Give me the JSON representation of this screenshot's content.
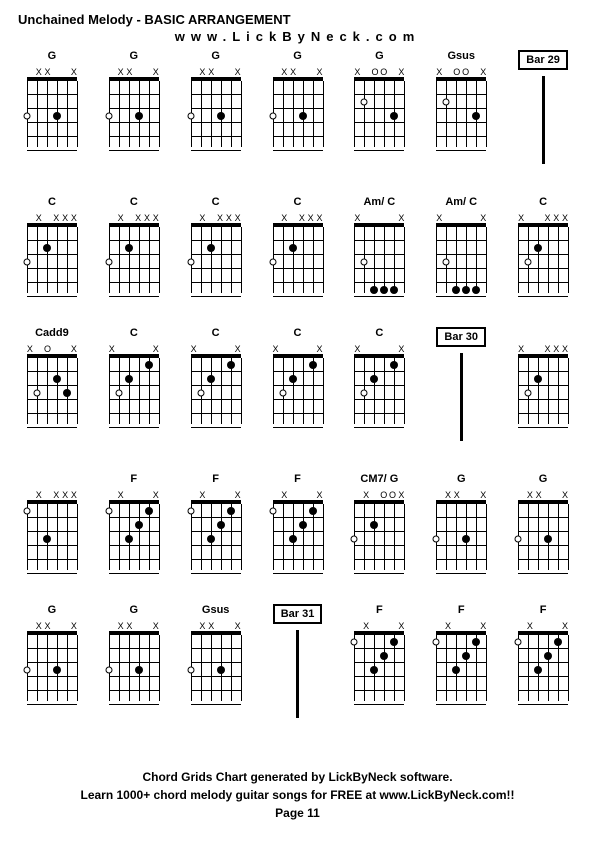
{
  "title": "Unchained Melody - BASIC ARRANGEMENT",
  "subtitle": "www.LickByNeck.com",
  "footer_line1": "Chord Grids Chart generated by LickByNeck software.",
  "footer_line2": "Learn 1000+ chord melody guitar songs for FREE at www.LickByNeck.com!!",
  "footer_page": "Page 11",
  "colors": {
    "bg": "#ffffff",
    "fg": "#000000"
  },
  "layout": {
    "rows": 5,
    "cols": 7,
    "fret_count": 5,
    "string_count": 6
  },
  "rows": [
    [
      {
        "type": "chord",
        "label": "G",
        "nut": [
          "",
          "X",
          "X",
          "",
          "",
          "X"
        ],
        "dots": [
          [
            0,
            3,
            "h"
          ],
          [
            3,
            3,
            "s"
          ]
        ]
      },
      {
        "type": "chord",
        "label": "G",
        "nut": [
          "",
          "X",
          "X",
          "",
          "",
          "X"
        ],
        "dots": [
          [
            0,
            3,
            "h"
          ],
          [
            3,
            3,
            "s"
          ]
        ]
      },
      {
        "type": "chord",
        "label": "G",
        "nut": [
          "",
          "X",
          "X",
          "",
          "",
          "X"
        ],
        "dots": [
          [
            0,
            3,
            "h"
          ],
          [
            3,
            3,
            "s"
          ]
        ]
      },
      {
        "type": "chord",
        "label": "G",
        "nut": [
          "",
          "X",
          "X",
          "",
          "",
          "X"
        ],
        "dots": [
          [
            0,
            3,
            "h"
          ],
          [
            3,
            3,
            "s"
          ]
        ]
      },
      {
        "type": "chord",
        "label": "G",
        "nut": [
          "X",
          "",
          "O",
          "O",
          "",
          "X"
        ],
        "dots": [
          [
            1,
            2,
            "h"
          ],
          [
            4,
            3,
            "s"
          ]
        ]
      },
      {
        "type": "chord",
        "label": "Gsus",
        "nut": [
          "X",
          "",
          "O",
          "O",
          "",
          "X"
        ],
        "dots": [
          [
            1,
            2,
            "h"
          ],
          [
            4,
            3,
            "s"
          ]
        ]
      },
      {
        "type": "bar",
        "label": "Bar 29"
      }
    ],
    [
      {
        "type": "chord",
        "label": "C",
        "nut": [
          "",
          "X",
          "",
          "X",
          "X",
          "X"
        ],
        "dots": [
          [
            0,
            3,
            "h"
          ],
          [
            2,
            2,
            "s"
          ]
        ]
      },
      {
        "type": "chord",
        "label": "C",
        "nut": [
          "",
          "X",
          "",
          "X",
          "X",
          "X"
        ],
        "dots": [
          [
            0,
            3,
            "h"
          ],
          [
            2,
            2,
            "s"
          ]
        ]
      },
      {
        "type": "chord",
        "label": "C",
        "nut": [
          "",
          "X",
          "",
          "X",
          "X",
          "X"
        ],
        "dots": [
          [
            0,
            3,
            "h"
          ],
          [
            2,
            2,
            "s"
          ]
        ]
      },
      {
        "type": "chord",
        "label": "C",
        "nut": [
          "",
          "X",
          "",
          "X",
          "X",
          "X"
        ],
        "dots": [
          [
            0,
            3,
            "h"
          ],
          [
            2,
            2,
            "s"
          ]
        ]
      },
      {
        "type": "chord",
        "label": "Am/ C",
        "nut": [
          "X",
          "",
          "",
          "",
          "",
          "X"
        ],
        "dots": [
          [
            1,
            3,
            "h"
          ],
          [
            2,
            5,
            "s"
          ],
          [
            3,
            5,
            "s"
          ],
          [
            4,
            5,
            "s"
          ]
        ]
      },
      {
        "type": "chord",
        "label": "Am/ C",
        "nut": [
          "X",
          "",
          "",
          "",
          "",
          "X"
        ],
        "dots": [
          [
            1,
            3,
            "h"
          ],
          [
            2,
            5,
            "s"
          ],
          [
            3,
            5,
            "s"
          ],
          [
            4,
            5,
            "s"
          ]
        ]
      },
      {
        "type": "chord",
        "label": "C",
        "nut": [
          "X",
          "",
          "",
          "X",
          "X",
          "X"
        ],
        "dots": [
          [
            1,
            3,
            "h"
          ],
          [
            2,
            2,
            "s"
          ]
        ]
      }
    ],
    [
      {
        "type": "chord",
        "label": "Cadd9",
        "nut": [
          "X",
          "",
          "O",
          "",
          "",
          "X"
        ],
        "dots": [
          [
            1,
            3,
            "h"
          ],
          [
            3,
            2,
            "s"
          ],
          [
            4,
            3,
            "s"
          ]
        ]
      },
      {
        "type": "chord",
        "label": "C",
        "nut": [
          "X",
          "",
          "",
          "",
          "",
          "X"
        ],
        "dots": [
          [
            1,
            3,
            "h"
          ],
          [
            2,
            2,
            "s"
          ],
          [
            4,
            1,
            "s"
          ]
        ]
      },
      {
        "type": "chord",
        "label": "C",
        "nut": [
          "X",
          "",
          "",
          "",
          "",
          "X"
        ],
        "dots": [
          [
            1,
            3,
            "h"
          ],
          [
            2,
            2,
            "s"
          ],
          [
            4,
            1,
            "s"
          ]
        ]
      },
      {
        "type": "chord",
        "label": "C",
        "nut": [
          "X",
          "",
          "",
          "",
          "",
          "X"
        ],
        "dots": [
          [
            1,
            3,
            "h"
          ],
          [
            2,
            2,
            "s"
          ],
          [
            4,
            1,
            "s"
          ]
        ]
      },
      {
        "type": "chord",
        "label": "C",
        "nut": [
          "X",
          "",
          "",
          "",
          "",
          "X"
        ],
        "dots": [
          [
            1,
            3,
            "h"
          ],
          [
            2,
            2,
            "s"
          ],
          [
            4,
            1,
            "s"
          ]
        ]
      },
      {
        "type": "bar",
        "label": "Bar 30"
      },
      {
        "type": "chord",
        "label": "",
        "nut": [
          "X",
          "",
          "",
          "X",
          "X",
          "X"
        ],
        "dots": [
          [
            1,
            3,
            "h"
          ],
          [
            2,
            2,
            "s"
          ]
        ]
      }
    ],
    [
      {
        "type": "chord",
        "label": "",
        "nut": [
          "",
          "X",
          "",
          "X",
          "X",
          "X"
        ],
        "dots": [
          [
            0,
            1,
            "h"
          ],
          [
            2,
            3,
            "s"
          ]
        ]
      },
      {
        "type": "chord",
        "label": "F",
        "nut": [
          "",
          "X",
          "",
          "",
          "",
          "X"
        ],
        "dots": [
          [
            0,
            1,
            "h"
          ],
          [
            2,
            3,
            "s"
          ],
          [
            3,
            2,
            "s"
          ],
          [
            4,
            1,
            "s"
          ]
        ]
      },
      {
        "type": "chord",
        "label": "F",
        "nut": [
          "",
          "X",
          "",
          "",
          "",
          "X"
        ],
        "dots": [
          [
            0,
            1,
            "h"
          ],
          [
            2,
            3,
            "s"
          ],
          [
            3,
            2,
            "s"
          ],
          [
            4,
            1,
            "s"
          ]
        ]
      },
      {
        "type": "chord",
        "label": "F",
        "nut": [
          "",
          "X",
          "",
          "",
          "",
          "X"
        ],
        "dots": [
          [
            0,
            1,
            "h"
          ],
          [
            2,
            3,
            "s"
          ],
          [
            3,
            2,
            "s"
          ],
          [
            4,
            1,
            "s"
          ]
        ]
      },
      {
        "type": "chord",
        "label": "CM7/ G",
        "nut": [
          "",
          "X",
          "",
          "O",
          "O",
          "X"
        ],
        "dots": [
          [
            0,
            3,
            "h"
          ],
          [
            2,
            2,
            "s"
          ]
        ]
      },
      {
        "type": "chord",
        "label": "G",
        "nut": [
          "",
          "X",
          "X",
          "",
          "",
          "X"
        ],
        "dots": [
          [
            0,
            3,
            "h"
          ],
          [
            3,
            3,
            "s"
          ]
        ]
      },
      {
        "type": "chord",
        "label": "G",
        "nut": [
          "",
          "X",
          "X",
          "",
          "",
          "X"
        ],
        "dots": [
          [
            0,
            3,
            "h"
          ],
          [
            3,
            3,
            "s"
          ]
        ]
      }
    ],
    [
      {
        "type": "chord",
        "label": "G",
        "nut": [
          "",
          "X",
          "X",
          "",
          "",
          "X"
        ],
        "dots": [
          [
            0,
            3,
            "h"
          ],
          [
            3,
            3,
            "s"
          ]
        ]
      },
      {
        "type": "chord",
        "label": "G",
        "nut": [
          "",
          "X",
          "X",
          "",
          "",
          "X"
        ],
        "dots": [
          [
            0,
            3,
            "h"
          ],
          [
            3,
            3,
            "s"
          ]
        ]
      },
      {
        "type": "chord",
        "label": "Gsus",
        "nut": [
          "",
          "X",
          "X",
          "",
          "",
          "X"
        ],
        "dots": [
          [
            0,
            3,
            "h"
          ],
          [
            3,
            3,
            "s"
          ]
        ]
      },
      {
        "type": "bar",
        "label": "Bar 31"
      },
      {
        "type": "chord",
        "label": "F",
        "nut": [
          "",
          "X",
          "",
          "",
          "",
          "X"
        ],
        "dots": [
          [
            0,
            1,
            "h"
          ],
          [
            2,
            3,
            "s"
          ],
          [
            3,
            2,
            "s"
          ],
          [
            4,
            1,
            "s"
          ]
        ]
      },
      {
        "type": "chord",
        "label": "F",
        "nut": [
          "",
          "X",
          "",
          "",
          "",
          "X"
        ],
        "dots": [
          [
            0,
            1,
            "h"
          ],
          [
            2,
            3,
            "s"
          ],
          [
            3,
            2,
            "s"
          ],
          [
            4,
            1,
            "s"
          ]
        ]
      },
      {
        "type": "chord",
        "label": "F",
        "nut": [
          "",
          "X",
          "",
          "",
          "",
          "X"
        ],
        "dots": [
          [
            0,
            1,
            "h"
          ],
          [
            2,
            3,
            "s"
          ],
          [
            3,
            2,
            "s"
          ],
          [
            4,
            1,
            "s"
          ]
        ]
      }
    ]
  ]
}
